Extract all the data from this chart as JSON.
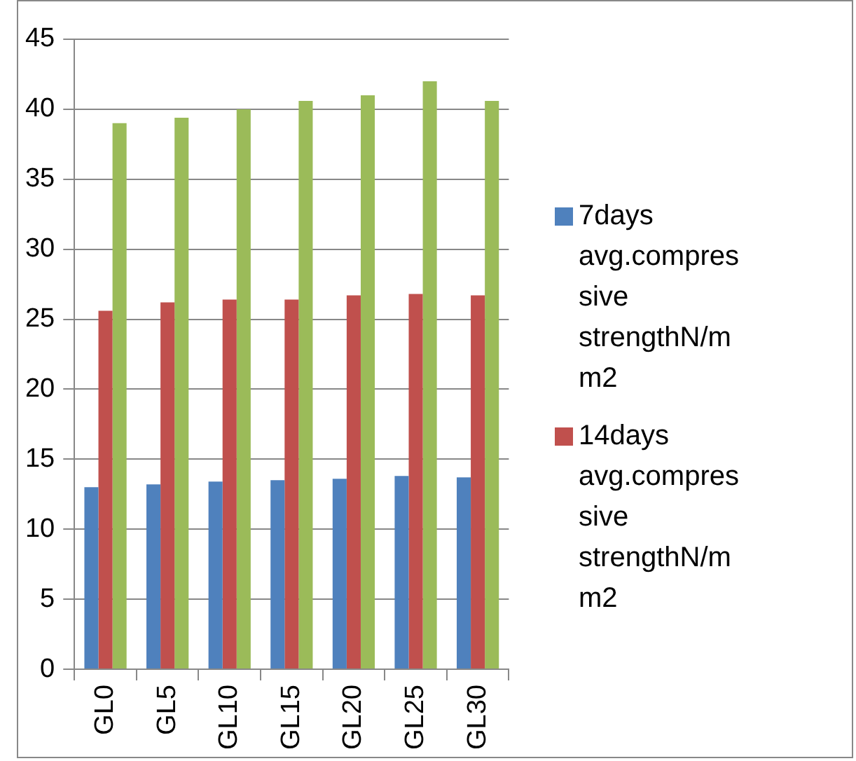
{
  "chart_data": {
    "type": "bar",
    "categories": [
      "GL0",
      "GL5",
      "GL10",
      "GL15",
      "GL20",
      "GL25",
      "GL30"
    ],
    "series": [
      {
        "name": "7days avg.compressive strengthN/mm2",
        "color": "#4f81bd",
        "values": [
          13.0,
          13.2,
          13.4,
          13.5,
          13.6,
          13.8,
          13.7
        ]
      },
      {
        "name": "14days avg.compressive strengthN/mm2",
        "color": "#c0504d",
        "values": [
          25.6,
          26.2,
          26.4,
          26.4,
          26.7,
          26.8,
          26.7
        ]
      },
      {
        "color": "#9bbb59",
        "values": [
          39.0,
          39.4,
          40.0,
          40.6,
          41.0,
          42.0,
          40.6
        ]
      }
    ],
    "ylim": [
      0,
      45
    ],
    "yticks": [
      0,
      5,
      10,
      15,
      20,
      25,
      30,
      35,
      40,
      45
    ],
    "grid": "y",
    "legend": "right"
  }
}
